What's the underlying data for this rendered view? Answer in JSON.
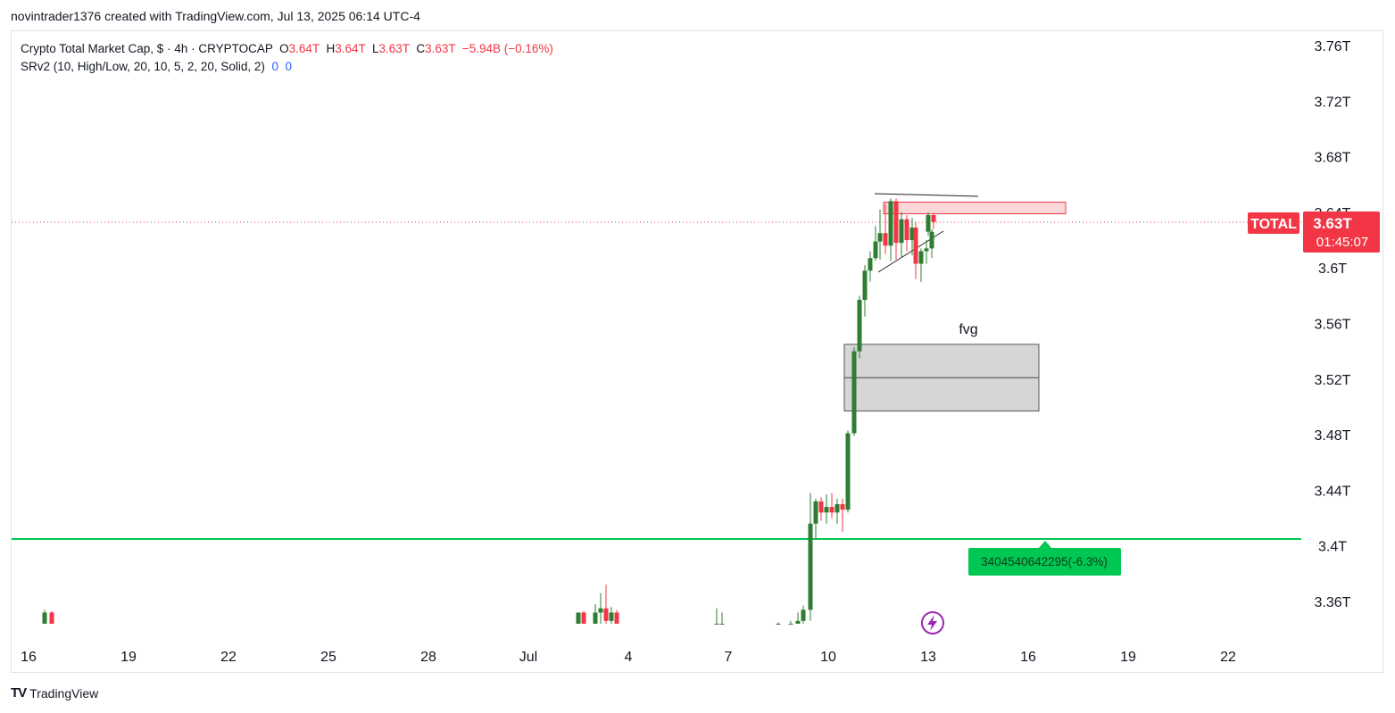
{
  "header": {
    "credit": "novintrader1376 created with TradingView.com, Jul 13, 2025 06:14 UTC-4"
  },
  "legend": {
    "symbol": "Crypto Total Market Cap, $ · 4h · CRYPTOCAP",
    "o_label": "O",
    "o_value": "3.64T",
    "h_label": "H",
    "h_value": "3.64T",
    "l_label": "L",
    "l_value": "3.63T",
    "c_label": "C",
    "c_value": "3.63T",
    "change": "−5.94B (−0.16%)",
    "indicator": "SRv2 (10, High/Low, 20, 10, 5, 2, 20, Solid, 2)",
    "ind_v1": "0",
    "ind_v2": "0"
  },
  "footer": {
    "brand": "TradingView",
    "logo": "TV"
  },
  "colors": {
    "up": "#2e7d32",
    "down": "#f23645",
    "support": "#00c853",
    "badge": "#f23645",
    "zone_red": "#fcd7d9",
    "fvg": "#d6d6d6",
    "event": "#9c27b0"
  },
  "chart_data": {
    "type": "candlestick",
    "symbol": "TOTAL",
    "timeframe": "4h",
    "y_ticks": [
      "3.76T",
      "3.72T",
      "3.68T",
      "3.64T",
      "3.6T",
      "3.56T",
      "3.52T",
      "3.48T",
      "3.44T",
      "3.4T",
      "3.36T"
    ],
    "y_tick_values": [
      3.76,
      3.72,
      3.68,
      3.64,
      3.6,
      3.56,
      3.52,
      3.48,
      3.44,
      3.4,
      3.36
    ],
    "x_ticks": [
      "16",
      "19",
      "22",
      "25",
      "28",
      "Jul",
      "4",
      "7",
      "10",
      "13",
      "16",
      "19",
      "22"
    ],
    "last_price": {
      "label": "TOTAL",
      "value": "3.63T",
      "countdown": "01:45:07",
      "price": 3.63
    },
    "support_line": {
      "price": 3.404,
      "label": "3404540642295(-6.3%)"
    },
    "annotations": {
      "fvg_label": "fvg",
      "fvg_zone": [
        3.497,
        3.545
      ],
      "fvg_mid": 3.521,
      "red_zone": [
        3.638,
        3.646
      ]
    },
    "candles_x_days": [
      0.5,
      0.7,
      17.0,
      17.3,
      17.6,
      17.9,
      18.2,
      18.5,
      18.8,
      19.1,
      19.4,
      19.7,
      20.0,
      20.3,
      20.6,
      20.9,
      21.2,
      21.5,
      21.8,
      22.1,
      22.4,
      22.7,
      23.0,
      23.3,
      23.6,
      23.9,
      24.2,
      24.5,
      24.8,
      25.1,
      25.4,
      25.7,
      26.0,
      26.3,
      26.6,
      26.9,
      27.2,
      27.5,
      27.8,
      28.1,
      28.4,
      28.7,
      29.0,
      29.3,
      29.6,
      29.9,
      30.2,
      30.5,
      30.8,
      31.1
    ],
    "candles": [
      {
        "x": 0.55,
        "o": 3.344,
        "h": 3.354,
        "l": 3.344,
        "c": 3.352
      },
      {
        "x": 0.75,
        "o": 3.352,
        "h": 3.353,
        "l": 3.344,
        "c": 3.344
      },
      {
        "x": 17.05,
        "o": 3.344,
        "h": 3.352,
        "l": 3.344,
        "c": 3.352
      },
      {
        "x": 17.25,
        "o": 3.352,
        "h": 3.353,
        "l": 3.344,
        "c": 3.344
      },
      {
        "x": 17.45,
        "o": 3.344,
        "h": 3.358,
        "l": 3.344,
        "c": 3.352
      },
      {
        "x": 17.65,
        "o": 3.352,
        "h": 3.366,
        "l": 3.344,
        "c": 3.355
      },
      {
        "x": 17.85,
        "o": 3.355,
        "h": 3.372,
        "l": 3.344,
        "c": 3.346
      },
      {
        "x": 18.05,
        "o": 3.346,
        "h": 3.356,
        "l": 3.344,
        "c": 3.352
      },
      {
        "x": 18.25,
        "o": 3.352,
        "h": 3.354,
        "l": 3.344,
        "c": 3.344
      },
      {
        "x": 20.55,
        "o": 3.344,
        "h": 3.355,
        "l": 3.344,
        "c": 3.344
      },
      {
        "x": 20.75,
        "o": 3.344,
        "h": 3.352,
        "l": 3.344,
        "c": 3.344
      },
      {
        "x": 22.45,
        "o": 3.344,
        "h": 3.345,
        "l": 3.344,
        "c": 3.344
      },
      {
        "x": 22.65,
        "o": 3.344,
        "h": 3.346,
        "l": 3.344,
        "c": 3.344
      },
      {
        "x": 22.85,
        "o": 3.344,
        "h": 3.352,
        "l": 3.344,
        "c": 3.346
      },
      {
        "x": 23.05,
        "o": 3.346,
        "h": 3.357,
        "l": 3.344,
        "c": 3.354
      },
      {
        "x": 23.25,
        "o": 3.354,
        "h": 3.438,
        "l": 3.346,
        "c": 3.416
      },
      {
        "x": 23.45,
        "o": 3.416,
        "h": 3.434,
        "l": 3.405,
        "c": 3.432
      },
      {
        "x": 23.65,
        "o": 3.432,
        "h": 3.435,
        "l": 3.418,
        "c": 3.424
      },
      {
        "x": 23.85,
        "o": 3.424,
        "h": 3.437,
        "l": 3.416,
        "c": 3.428
      },
      {
        "x": 24.05,
        "o": 3.428,
        "h": 3.438,
        "l": 3.42,
        "c": 3.424
      },
      {
        "x": 24.25,
        "o": 3.424,
        "h": 3.434,
        "l": 3.416,
        "c": 3.43
      },
      {
        "x": 24.45,
        "o": 3.43,
        "h": 3.434,
        "l": 3.41,
        "c": 3.426
      },
      {
        "x": 24.65,
        "o": 3.426,
        "h": 3.483,
        "l": 3.424,
        "c": 3.481
      },
      {
        "x": 24.85,
        "o": 3.481,
        "h": 3.543,
        "l": 3.479,
        "c": 3.54
      },
      {
        "x": 25.05,
        "o": 3.54,
        "h": 3.58,
        "l": 3.535,
        "c": 3.577
      },
      {
        "x": 25.25,
        "o": 3.577,
        "h": 3.602,
        "l": 3.565,
        "c": 3.598
      },
      {
        "x": 25.45,
        "o": 3.598,
        "h": 3.612,
        "l": 3.59,
        "c": 3.607
      },
      {
        "x": 25.65,
        "o": 3.607,
        "h": 3.63,
        "l": 3.605,
        "c": 3.619
      },
      {
        "x": 25.85,
        "o": 3.619,
        "h": 3.642,
        "l": 3.606,
        "c": 3.625
      },
      {
        "x": 26.05,
        "o": 3.625,
        "h": 3.646,
        "l": 3.61,
        "c": 3.616
      },
      {
        "x": 26.25,
        "o": 3.616,
        "h": 3.65,
        "l": 3.605,
        "c": 3.648
      },
      {
        "x": 26.45,
        "o": 3.648,
        "h": 3.65,
        "l": 3.606,
        "c": 3.618
      },
      {
        "x": 26.65,
        "o": 3.618,
        "h": 3.64,
        "l": 3.608,
        "c": 3.635
      },
      {
        "x": 26.85,
        "o": 3.635,
        "h": 3.638,
        "l": 3.612,
        "c": 3.62
      },
      {
        "x": 27.05,
        "o": 3.62,
        "h": 3.636,
        "l": 3.609,
        "c": 3.629
      },
      {
        "x": 27.25,
        "o": 3.629,
        "h": 3.633,
        "l": 3.592,
        "c": 3.603
      },
      {
        "x": 27.45,
        "o": 3.603,
        "h": 3.614,
        "l": 3.59,
        "c": 3.612
      },
      {
        "x": 27.65,
        "o": 3.612,
        "h": 3.62,
        "l": 3.603,
        "c": 3.614
      },
      {
        "x": 27.85,
        "o": 3.614,
        "h": 3.628,
        "l": 3.607,
        "c": 3.626
      },
      {
        "x": 28.05,
        "o": 3.626,
        "h": 3.64,
        "l": 3.623,
        "c": 3.638
      },
      {
        "x": 28.25,
        "o": 3.638,
        "h": 3.639,
        "l": 3.628,
        "c": 3.633
      }
    ]
  }
}
